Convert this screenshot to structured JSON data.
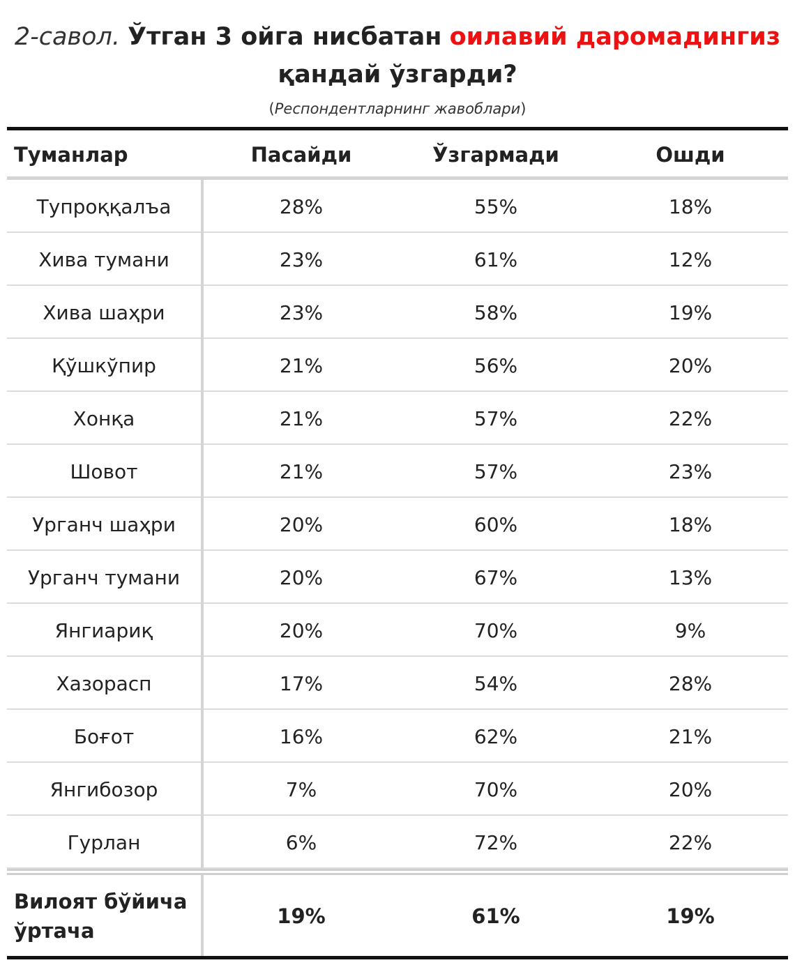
{
  "title": {
    "prefix": "2-савол.",
    "part1": "Ўтган 3 ойга нисбатан",
    "highlight": "оилавий даромадингиз",
    "part2": "қандай ўзгарди?",
    "highlight_color": "#ee1111"
  },
  "subtitle": {
    "open": "(",
    "text": "Респондентларнинг жавоблари",
    "close": ")"
  },
  "chart_data": {
    "type": "table",
    "columns": [
      "Туманлар",
      "Пасайди",
      "Ўзгармади",
      "Ошди"
    ],
    "rows": [
      {
        "district": "Тупроққалъа",
        "decreased": "28%",
        "unchanged": "55%",
        "increased": "18%"
      },
      {
        "district": "Хива тумани",
        "decreased": "23%",
        "unchanged": "61%",
        "increased": "12%"
      },
      {
        "district": "Хива шаҳри",
        "decreased": "23%",
        "unchanged": "58%",
        "increased": "19%"
      },
      {
        "district": "Қўшкўпир",
        "decreased": "21%",
        "unchanged": "56%",
        "increased": "20%"
      },
      {
        "district": "Хонқа",
        "decreased": "21%",
        "unchanged": "57%",
        "increased": "22%"
      },
      {
        "district": "Шовот",
        "decreased": "21%",
        "unchanged": "57%",
        "increased": "23%"
      },
      {
        "district": "Урганч шаҳри",
        "decreased": "20%",
        "unchanged": "60%",
        "increased": "18%"
      },
      {
        "district": "Урганч тумани",
        "decreased": "20%",
        "unchanged": "67%",
        "increased": "13%"
      },
      {
        "district": "Янгиариқ",
        "decreased": "20%",
        "unchanged": "70%",
        "increased": "9%"
      },
      {
        "district": "Хазорасп",
        "decreased": "17%",
        "unchanged": "54%",
        "increased": "28%"
      },
      {
        "district": "Боғот",
        "decreased": "16%",
        "unchanged": "62%",
        "increased": "21%"
      },
      {
        "district": "Янгибозор",
        "decreased": "7%",
        "unchanged": "70%",
        "increased": "20%"
      },
      {
        "district": "Гурлан",
        "decreased": "6%",
        "unchanged": "72%",
        "increased": "22%"
      }
    ],
    "total": {
      "label_line1": "Вилоят бўйича",
      "label_line2": "ўртача",
      "decreased": "19%",
      "unchanged": "61%",
      "increased": "19%"
    }
  }
}
